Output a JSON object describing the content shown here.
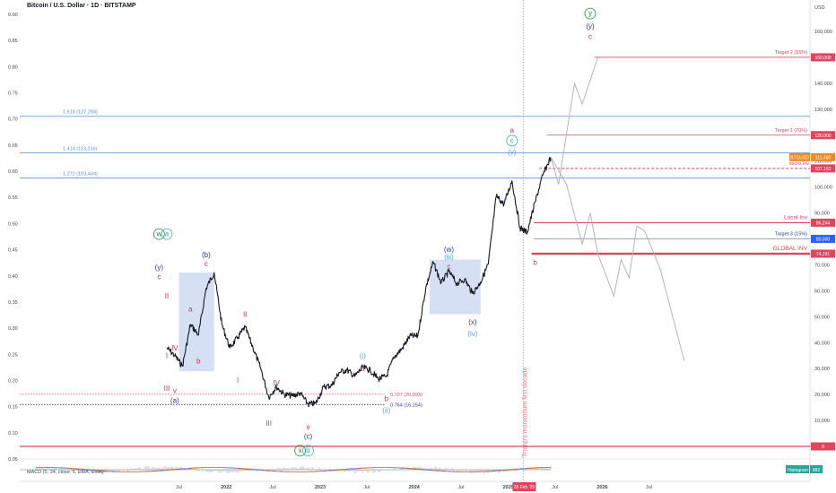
{
  "title": "Bitcoin / U.S. Dollar · 1D · BITSTAMP",
  "colors": {
    "candle": "#131722",
    "fib_blue": "#5b8fd6",
    "target_red": "#e0455e",
    "projection": "#b2b5be",
    "box": "#c5d3f0",
    "wave_red": "#d9304f",
    "wave_navy": "#2a3a8a",
    "wave_green": "#1b8a3a",
    "wave_teal": "#3bb3a3",
    "wave_lightblue": "#5aa0e0",
    "price_tag_orange": "#f0892a",
    "macd_line": "#2962ff",
    "signal_line": "#ff6d00"
  },
  "chart_data": {
    "type": "line",
    "title": "Bitcoin / U.S. Dollar · 1D · BITSTAMP",
    "x_tick_labels": [
      "Jul",
      "2022",
      "Jul",
      "2023",
      "Jul",
      "2024",
      "Jul",
      "2025",
      "Jul",
      "2026",
      "Jul"
    ],
    "left_axis_ticks": [
      "0.90",
      "0.85",
      "0.80",
      "0.75",
      "0.70",
      "0.65",
      "0.60",
      "0.55",
      "0.50",
      "0.45",
      "0.40",
      "0.35",
      "0.30",
      "0.25",
      "0.20",
      "0.15",
      "0.10",
      "0.05"
    ],
    "right_axis_ticks": [
      "160,000",
      "150,000",
      "140,000",
      "130,000",
      "120,000",
      "110,000",
      "100,000",
      "90,000",
      "80,000",
      "70,000",
      "60,000",
      "50,000",
      "40,000",
      "30,000",
      "20,000",
      "10,000",
      "0"
    ],
    "right_axis_unit": "USD",
    "price_path_usd": [
      [
        "2021-05",
        38000
      ],
      [
        "2021-06",
        35000
      ],
      [
        "2021-07",
        31000
      ],
      [
        "2021-08",
        47000
      ],
      [
        "2021-09",
        43000
      ],
      [
        "2021-10",
        61000
      ],
      [
        "2021-11",
        67000
      ],
      [
        "2021-12",
        47000
      ],
      [
        "2022-01",
        38000
      ],
      [
        "2022-02",
        42000
      ],
      [
        "2022-03",
        46000
      ],
      [
        "2022-04",
        38000
      ],
      [
        "2022-05",
        30000
      ],
      [
        "2022-06",
        19000
      ],
      [
        "2022-07",
        23000
      ],
      [
        "2022-08",
        20000
      ],
      [
        "2022-09",
        19500
      ],
      [
        "2022-10",
        20500
      ],
      [
        "2022-11",
        16200
      ],
      [
        "2022-12",
        16600
      ],
      [
        "2023-01",
        23000
      ],
      [
        "2023-02",
        23500
      ],
      [
        "2023-03",
        28500
      ],
      [
        "2023-04",
        29500
      ],
      [
        "2023-05",
        27000
      ],
      [
        "2023-06",
        30500
      ],
      [
        "2023-07",
        29300
      ],
      [
        "2023-08",
        26000
      ],
      [
        "2023-09",
        27000
      ],
      [
        "2023-10",
        34500
      ],
      [
        "2023-11",
        37700
      ],
      [
        "2023-12",
        42500
      ],
      [
        "2024-01",
        42500
      ],
      [
        "2024-02",
        61000
      ],
      [
        "2024-03",
        71000
      ],
      [
        "2024-04",
        63000
      ],
      [
        "2024-05",
        67500
      ],
      [
        "2024-06",
        62700
      ],
      [
        "2024-07",
        64500
      ],
      [
        "2024-08",
        59000
      ],
      [
        "2024-09",
        63300
      ],
      [
        "2024-10",
        70300
      ],
      [
        "2024-11",
        96500
      ],
      [
        "2024-12",
        93400
      ],
      [
        "2025-01",
        102400
      ],
      [
        "2025-02",
        84300
      ],
      [
        "2025-03",
        82500
      ],
      [
        "2025-04",
        94200
      ],
      [
        "2025-05",
        104600
      ],
      [
        "2025-06",
        111500
      ]
    ],
    "projection_up_usd": [
      [
        "2025-06",
        111500
      ],
      [
        "2025-07",
        101000
      ],
      [
        "2025-09",
        140000
      ],
      [
        "2025-10",
        132000
      ],
      [
        "2025-12",
        150000
      ]
    ],
    "projection_down_usd": [
      [
        "2025-06",
        111500
      ],
      [
        "2025-08",
        101000
      ],
      [
        "2025-10",
        78000
      ],
      [
        "2025-11",
        90000
      ],
      [
        "2025-12",
        74000
      ],
      [
        "2026-02",
        58000
      ],
      [
        "2026-03",
        72000
      ],
      [
        "2026-04",
        65000
      ],
      [
        "2026-05",
        85000
      ],
      [
        "2026-06",
        83000
      ],
      [
        "2026-08",
        68000
      ],
      [
        "2026-11",
        33000
      ]
    ],
    "levels": [
      {
        "label": "1.618 (127,268)",
        "value": 127268,
        "kind": "fib"
      },
      {
        "label": "1.414 (113,216)",
        "value": 113216,
        "kind": "fib"
      },
      {
        "label": "1.272 (103,434)",
        "value": 103434,
        "kind": "fib"
      },
      {
        "label": "0.707 (20,093)",
        "value": 20093,
        "kind": "fib_bottom"
      },
      {
        "label": "0.764 (16,154)",
        "value": 16154,
        "kind": "fib_bottom"
      },
      {
        "label": "Target 2 (15%)",
        "value": 150000,
        "tag": "150,000",
        "kind": "target"
      },
      {
        "label": "Target 1 (70%)",
        "value": 120000,
        "tag": "120,000",
        "kind": "target"
      },
      {
        "label": "micro Inv",
        "value": 107162,
        "tag": "107,162",
        "kind": "micro"
      },
      {
        "label": "Local Inv",
        "value": 86244,
        "tag": "86,244",
        "kind": "local"
      },
      {
        "label": "Target 3 (15%)",
        "value": 80000,
        "tag": "80,000",
        "kind": "target_blue"
      },
      {
        "label": "GLOBAL INV",
        "value": 74291,
        "tag": "74,291",
        "kind": "global"
      },
      {
        "label": "",
        "value": 0,
        "tag": "0",
        "kind": "zero"
      }
    ],
    "current_price": {
      "symbol": "BTCUSD",
      "value": "111,480"
    },
    "vertical_line": {
      "date": "2025-02-28",
      "label": "Trump's moratorium first decade",
      "date_label": "28 Feb '25"
    },
    "boxes": [
      {
        "from": "2021-07",
        "to": "2021-11",
        "low": 29000,
        "high": 67000
      },
      {
        "from": "2024-03",
        "to": "2024-09",
        "low": 51000,
        "high": 72000
      }
    ],
    "wave_labels": [
      {
        "text": "w",
        "date": "2021-04",
        "price": 81000,
        "color": "wave_green",
        "circle": true
      },
      {
        "text": "a",
        "date": "2021-05",
        "price": 81000,
        "color": "wave_teal",
        "circle": true
      },
      {
        "text": "(y)",
        "date": "2021-04",
        "price": 68000,
        "color": "wave_navy"
      },
      {
        "text": "c",
        "date": "2021-04",
        "price": 64500,
        "color": "wave_red"
      },
      {
        "text": "II",
        "date": "2021-05",
        "price": 57000,
        "color": "wave_red"
      },
      {
        "text": "IV",
        "date": "2021-06",
        "price": 37000,
        "color": "wave_red"
      },
      {
        "text": "I",
        "date": "2021-05",
        "price": 34000,
        "color": "wave_red"
      },
      {
        "text": "III",
        "date": "2021-05",
        "price": 21500,
        "color": "wave_red"
      },
      {
        "text": "v",
        "date": "2021-06",
        "price": 20500,
        "color": "wave_red"
      },
      {
        "text": "(a)",
        "date": "2021-06",
        "price": 16800,
        "color": "wave_navy"
      },
      {
        "text": "a",
        "date": "2021-08",
        "price": 52000,
        "color": "wave_red"
      },
      {
        "text": "b",
        "date": "2021-09",
        "price": 32000,
        "color": "wave_red"
      },
      {
        "text": "(b)",
        "date": "2021-10",
        "price": 73000,
        "color": "wave_navy"
      },
      {
        "text": "c",
        "date": "2021-10",
        "price": 69500,
        "color": "wave_red"
      },
      {
        "text": "II",
        "date": "2022-03",
        "price": 50000,
        "color": "wave_red"
      },
      {
        "text": "I",
        "date": "2022-02",
        "price": 24500,
        "color": "wave_red"
      },
      {
        "text": "IV",
        "date": "2022-07",
        "price": 23500,
        "color": "wave_red"
      },
      {
        "text": "III",
        "date": "2022-06",
        "price": 8000,
        "color": "wave_red"
      },
      {
        "text": "v",
        "date": "2022-11",
        "price": 6500,
        "color": "wave_red"
      },
      {
        "text": "(c)",
        "date": "2022-11",
        "price": 3000,
        "color": "wave_navy"
      },
      {
        "text": "x",
        "date": "2022-10",
        "price": -2500,
        "color": "wave_green",
        "circle": true
      },
      {
        "text": "b",
        "date": "2022-11",
        "price": -2500,
        "color": "wave_teal",
        "circle": true
      },
      {
        "text": "(i)",
        "date": "2023-06",
        "price": 34000,
        "color": "wave_lightblue"
      },
      {
        "text": "a",
        "date": "2023-06",
        "price": 29000,
        "color": "wave_red"
      },
      {
        "text": "b",
        "date": "2023-09",
        "price": 17500,
        "color": "wave_red"
      },
      {
        "text": "(ii)",
        "date": "2023-09",
        "price": 13000,
        "color": "wave_lightblue"
      },
      {
        "text": "(w)",
        "date": "2024-05",
        "price": 75000,
        "color": "wave_navy"
      },
      {
        "text": "(iii)",
        "date": "2024-05",
        "price": 72000,
        "color": "wave_lightblue"
      },
      {
        "text": "c",
        "date": "2024-05",
        "price": 68500,
        "color": "wave_red"
      },
      {
        "text": "(x)",
        "date": "2024-08",
        "price": 47000,
        "color": "wave_navy"
      },
      {
        "text": "(iv)",
        "date": "2024-08",
        "price": 42500,
        "color": "wave_lightblue"
      },
      {
        "text": "a",
        "date": "2025-01",
        "price": 121000,
        "color": "wave_red"
      },
      {
        "text": "c",
        "date": "2025-01",
        "price": 117000,
        "color": "wave_teal",
        "circle": true
      },
      {
        "text": "(v)",
        "date": "2025-01",
        "price": 112500,
        "color": "wave_lightblue"
      },
      {
        "text": "b",
        "date": "2025-04",
        "price": 70000,
        "color": "wave_red"
      },
      {
        "text": "y",
        "date": "2025-11",
        "price": 166000,
        "color": "wave_green",
        "circle": true
      },
      {
        "text": "(y)",
        "date": "2025-11",
        "price": 161000,
        "color": "wave_navy"
      },
      {
        "text": "c",
        "date": "2025-11",
        "price": 157000,
        "color": "wave_red"
      }
    ],
    "macd": {
      "label": "MACD (5, 34, close, 5, EMA, EMA)",
      "histogram_label": "Histogram",
      "histogram_value": "882"
    }
  }
}
